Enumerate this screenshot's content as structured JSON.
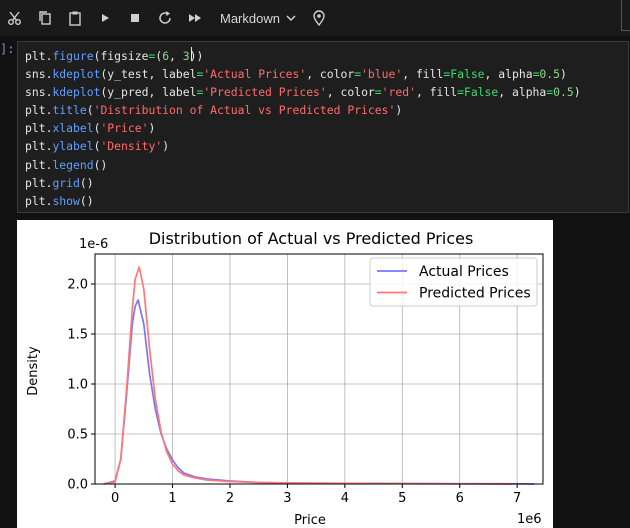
{
  "toolbar": {
    "buttons": [
      {
        "icon": "scissors-icon",
        "name": "cut-button"
      },
      {
        "icon": "copy-icon",
        "name": "copy-button"
      },
      {
        "icon": "paste-icon",
        "name": "paste-button"
      },
      {
        "icon": "play-icon",
        "name": "run-button"
      },
      {
        "icon": "stop-icon",
        "name": "stop-button"
      },
      {
        "icon": "restart-icon",
        "name": "restart-button"
      },
      {
        "icon": "fast-forward-icon",
        "name": "run-all-button"
      }
    ],
    "cell_type": "Markdown"
  },
  "cell": {
    "prompt": "]:",
    "code_lines": [
      "plt.figure(figsize=(6, 3))",
      "sns.kdeplot(y_test, label='Actual Prices', color='blue', fill=False, alpha=0.5)",
      "sns.kdeplot(y_pred, label='Predicted Prices', color='red', fill=False, alpha=0.5)",
      "plt.title('Distribution of Actual vs Predicted Prices')",
      "plt.xlabel('Price')",
      "plt.ylabel('Density')",
      "plt.legend()",
      "plt.grid()",
      "plt.show()"
    ]
  },
  "chart_data": {
    "type": "line",
    "title": "Distribution of Actual vs Predicted Prices",
    "xlabel": "Price",
    "ylabel": "Density",
    "x_offset_text": "1e6",
    "y_offset_text": "1e-6",
    "xlim": [
      -0.35,
      7.45
    ],
    "ylim": [
      0,
      2.3
    ],
    "xticks": [
      0,
      1,
      2,
      3,
      4,
      5,
      6,
      7
    ],
    "yticks": [
      0.0,
      0.5,
      1.0,
      1.5,
      2.0
    ],
    "ytick_labels": [
      "0.0",
      "0.5",
      "1.0",
      "1.5",
      "2.0"
    ],
    "grid": true,
    "legend_position": "upper right",
    "series": [
      {
        "name": "Actual Prices",
        "color": "#7777ff",
        "x": [
          -0.2,
          0.0,
          0.1,
          0.2,
          0.3,
          0.35,
          0.4,
          0.5,
          0.6,
          0.7,
          0.8,
          0.9,
          1.0,
          1.1,
          1.2,
          1.4,
          1.6,
          2.0,
          2.5,
          3.0,
          4.0,
          5.0,
          6.0,
          7.0,
          7.3
        ],
        "y": [
          0.0,
          0.03,
          0.25,
          0.9,
          1.6,
          1.78,
          1.84,
          1.6,
          1.1,
          0.75,
          0.5,
          0.35,
          0.24,
          0.16,
          0.11,
          0.07,
          0.05,
          0.03,
          0.015,
          0.01,
          0.006,
          0.004,
          0.003,
          0.002,
          0.0
        ]
      },
      {
        "name": "Predicted Prices",
        "color": "#ff7777",
        "x": [
          -0.2,
          0.0,
          0.1,
          0.2,
          0.3,
          0.35,
          0.42,
          0.5,
          0.6,
          0.7,
          0.8,
          0.9,
          1.0,
          1.1,
          1.2,
          1.4,
          1.6,
          2.0,
          2.5,
          3.0,
          4.0,
          5.0,
          6.0,
          6.9
        ],
        "y": [
          0.0,
          0.02,
          0.25,
          0.95,
          1.75,
          2.05,
          2.17,
          1.95,
          1.35,
          0.85,
          0.52,
          0.32,
          0.2,
          0.13,
          0.09,
          0.06,
          0.04,
          0.025,
          0.015,
          0.01,
          0.006,
          0.004,
          0.002,
          0.0
        ]
      }
    ]
  }
}
